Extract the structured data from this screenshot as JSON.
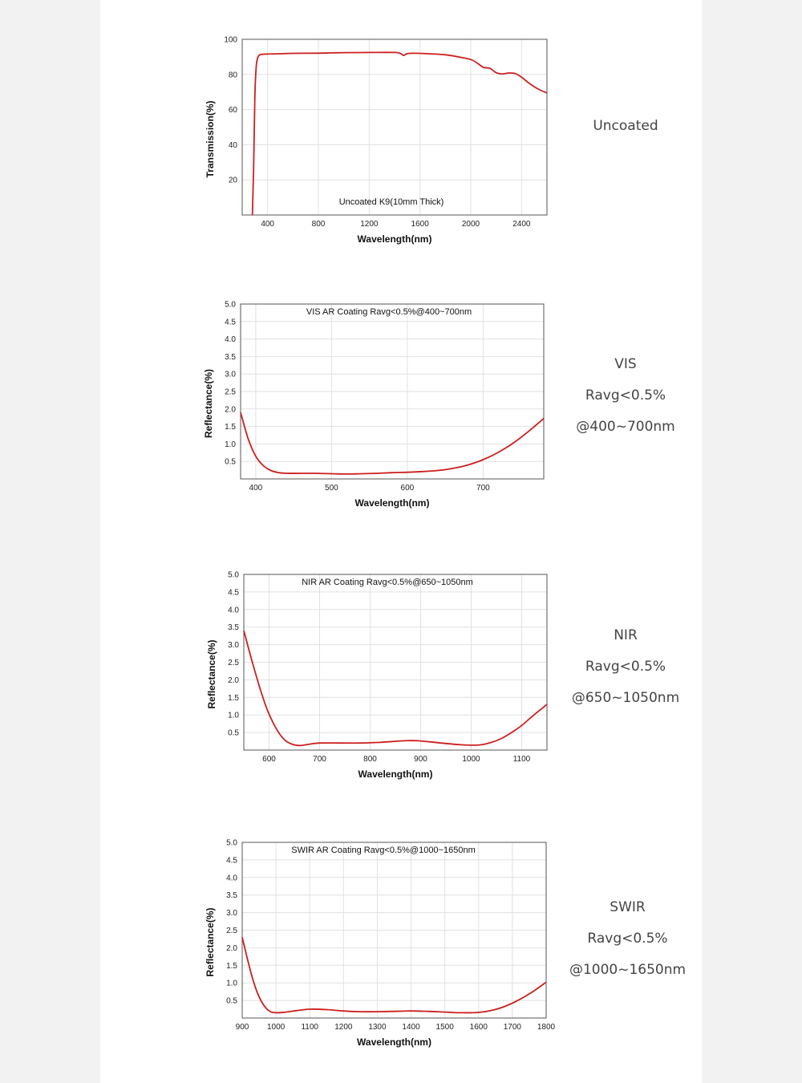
{
  "curve_color": "#cc1f1f",
  "grid_color": "#e1e1e1",
  "chart_data": [
    {
      "type": "line",
      "annotation": "Uncoated K9(10mm Thick)",
      "xlabel": "Wavelength(nm)",
      "ylabel": "Transmission(%)",
      "xlim": [
        200,
        2600
      ],
      "ylim": [
        0,
        100
      ],
      "xticks": [
        400,
        800,
        1200,
        1600,
        2000,
        2400
      ],
      "yticks": [
        20,
        40,
        60,
        80,
        100
      ],
      "grid": true,
      "series": [
        {
          "x": [
            280,
            290,
            300,
            310,
            320,
            335,
            360,
            400,
            500,
            600,
            800,
            900,
            1000,
            1200,
            1400,
            1450,
            1470,
            1490,
            1520,
            1600,
            1800,
            1900,
            2000,
            2050,
            2100,
            2150,
            2200,
            2250,
            2300,
            2350,
            2400,
            2450,
            2500,
            2550,
            2600
          ],
          "y": [
            0,
            28,
            68,
            84,
            89,
            91,
            91.5,
            91.6,
            91.8,
            92,
            92.1,
            92.3,
            92.4,
            92.5,
            92.5,
            91.8,
            90.8,
            91.6,
            92,
            92,
            91.2,
            90,
            88.5,
            86.5,
            84,
            83.5,
            81,
            80.3,
            80.8,
            80.5,
            78.5,
            75.5,
            73,
            71,
            69.5
          ]
        }
      ],
      "caption": [
        "Uncoated"
      ]
    },
    {
      "type": "line",
      "annotation": "VIS AR Coating Ravg<0.5%@400~700nm",
      "xlabel": "Wavelength(nm)",
      "ylabel": "Reflectance(%)",
      "xlim": [
        380,
        780
      ],
      "ylim": [
        0,
        5
      ],
      "xticks": [
        400,
        500,
        600,
        700
      ],
      "yticks": [
        0.5,
        1.0,
        1.5,
        2.0,
        2.5,
        3.0,
        3.5,
        4.0,
        4.5,
        5.0
      ],
      "grid": true,
      "series": [
        {
          "x": [
            380,
            390,
            400,
            410,
            420,
            430,
            440,
            460,
            480,
            500,
            520,
            540,
            560,
            580,
            600,
            620,
            640,
            660,
            680,
            700,
            720,
            740,
            760,
            780
          ],
          "y": [
            1.9,
            1.15,
            0.65,
            0.38,
            0.24,
            0.18,
            0.16,
            0.16,
            0.16,
            0.15,
            0.14,
            0.15,
            0.16,
            0.18,
            0.19,
            0.21,
            0.24,
            0.3,
            0.4,
            0.55,
            0.76,
            1.03,
            1.36,
            1.73
          ]
        }
      ],
      "caption": [
        "VIS",
        "Ravg<0.5%",
        "@400~700nm"
      ]
    },
    {
      "type": "line",
      "annotation": "NIR AR Coating Ravg<0.5%@650~1050nm",
      "xlabel": "Wavelength(nm)",
      "ylabel": "Reflectance(%)",
      "xlim": [
        550,
        1150
      ],
      "ylim": [
        0,
        5
      ],
      "xticks": [
        600,
        700,
        800,
        900,
        1000,
        1100
      ],
      "yticks": [
        0.5,
        1.0,
        1.5,
        2.0,
        2.5,
        3.0,
        3.5,
        4.0,
        4.5,
        5.0
      ],
      "grid": true,
      "series": [
        {
          "x": [
            550,
            565,
            580,
            595,
            610,
            625,
            640,
            660,
            680,
            700,
            740,
            780,
            820,
            860,
            880,
            900,
            940,
            980,
            1000,
            1020,
            1040,
            1060,
            1080,
            1100,
            1120,
            1150
          ],
          "y": [
            3.4,
            2.6,
            1.85,
            1.2,
            0.72,
            0.38,
            0.2,
            0.13,
            0.17,
            0.2,
            0.2,
            0.2,
            0.22,
            0.26,
            0.27,
            0.26,
            0.2,
            0.15,
            0.14,
            0.15,
            0.22,
            0.33,
            0.5,
            0.7,
            0.95,
            1.3
          ]
        }
      ],
      "caption": [
        "NIR",
        "Ravg<0.5%",
        "@650~1050nm"
      ]
    },
    {
      "type": "line",
      "annotation": "SWIR AR Coating Ravg<0.5%@1000~1650nm",
      "xlabel": "Wavelength(nm)",
      "ylabel": "Reflectance(%)",
      "xlim": [
        900,
        1800
      ],
      "ylim": [
        0,
        5
      ],
      "xticks": [
        900,
        1000,
        1100,
        1200,
        1300,
        1400,
        1500,
        1600,
        1700,
        1800
      ],
      "yticks": [
        0.5,
        1.0,
        1.5,
        2.0,
        2.5,
        3.0,
        3.5,
        4.0,
        4.5,
        5.0
      ],
      "grid": true,
      "series": [
        {
          "x": [
            900,
            915,
            930,
            945,
            960,
            980,
            1000,
            1030,
            1060,
            1100,
            1150,
            1200,
            1250,
            1300,
            1350,
            1400,
            1450,
            1500,
            1550,
            1600,
            1640,
            1680,
            1720,
            1760,
            1800
          ],
          "y": [
            2.3,
            1.7,
            1.15,
            0.72,
            0.42,
            0.2,
            0.15,
            0.17,
            0.21,
            0.25,
            0.24,
            0.2,
            0.18,
            0.18,
            0.19,
            0.2,
            0.19,
            0.17,
            0.15,
            0.16,
            0.22,
            0.34,
            0.52,
            0.75,
            1.02
          ]
        }
      ],
      "caption": [
        "SWIR",
        "Ravg<0.5%",
        "@1000~1650nm"
      ]
    }
  ]
}
